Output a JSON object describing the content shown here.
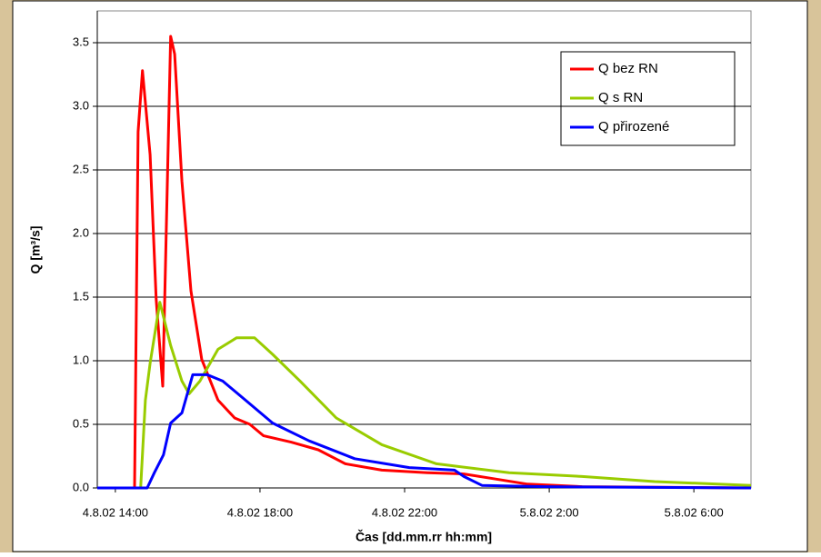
{
  "chart_data": {
    "type": "line",
    "x_label": "Čas [dd.mm.rr hh:mm]",
    "y_label": "Q [m³/s]",
    "xlim": [
      13.5,
      31.58
    ],
    "ylim": [
      0,
      3.75
    ],
    "xticks": [
      {
        "value": 14,
        "label": "4.8.02 14:00"
      },
      {
        "value": 18,
        "label": "4.8.02 18:00"
      },
      {
        "value": 22,
        "label": "4.8.02 22:00"
      },
      {
        "value": 26,
        "label": "5.8.02 2:00"
      },
      {
        "value": 30,
        "label": "5.8.02 6:00"
      }
    ],
    "yticks": [
      {
        "value": 0,
        "label": "0.0"
      },
      0.5,
      {
        "value": 1,
        "label": "1.0"
      },
      1.5,
      {
        "value": 2,
        "label": "2.0"
      },
      2.5,
      {
        "value": 3,
        "label": "3.0"
      },
      3.5
    ],
    "grid": true,
    "legend": "upper right",
    "series": [
      {
        "name": "Q bez RN",
        "color": "#ff0000",
        "x": [
          13.5,
          14.53,
          14.63,
          14.75,
          14.96,
          15.13,
          15.31,
          15.53,
          15.64,
          15.84,
          16.09,
          16.39,
          16.84,
          17.3,
          17.72,
          18.1,
          18.86,
          19.61,
          20.36,
          21.37,
          22.63,
          23.64,
          24.52,
          25.4,
          26.91,
          31.58
        ],
        "values": [
          0,
          0,
          2.8,
          3.28,
          2.62,
          1.48,
          0.8,
          3.55,
          3.41,
          2.41,
          1.55,
          1.01,
          0.69,
          0.55,
          0.5,
          0.41,
          0.36,
          0.3,
          0.19,
          0.14,
          0.12,
          0.11,
          0.07,
          0.03,
          0.01,
          0
        ]
      },
      {
        "name": "Q s RN",
        "color": "#99cc00",
        "x": [
          13.5,
          14.7,
          14.83,
          14.96,
          15.23,
          15.53,
          15.84,
          16.04,
          16.34,
          16.84,
          17.35,
          17.85,
          18.35,
          19.11,
          20.11,
          21.37,
          22.88,
          24.89,
          26.91,
          28.92,
          31.58
        ],
        "values": [
          0,
          0,
          0.69,
          0.98,
          1.46,
          1.12,
          0.84,
          0.74,
          0.84,
          1.09,
          1.18,
          1.18,
          1.05,
          0.84,
          0.55,
          0.34,
          0.19,
          0.12,
          0.09,
          0.05,
          0.02
        ]
      },
      {
        "name": "Q přirozené",
        "color": "#0000ff",
        "x": [
          13.5,
          14.88,
          15.08,
          15.33,
          15.53,
          15.84,
          16.14,
          16.54,
          16.97,
          17.6,
          18.35,
          19.36,
          20.62,
          22.13,
          23.38,
          23.64,
          24.14,
          25.9,
          31.58
        ],
        "values": [
          0,
          0,
          0.12,
          0.26,
          0.51,
          0.59,
          0.89,
          0.89,
          0.84,
          0.69,
          0.51,
          0.37,
          0.23,
          0.16,
          0.14,
          0.09,
          0.02,
          0.01,
          0
        ]
      }
    ]
  }
}
